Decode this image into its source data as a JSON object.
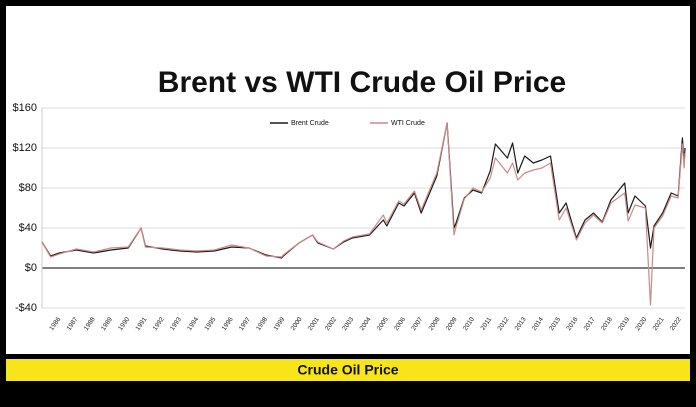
{
  "chart_data": {
    "type": "line",
    "title": "Brent vs WTI Crude Oil Price",
    "subtitle": "Crude Oil Price",
    "legend": "top-center",
    "grid": true,
    "xlim": [
      1985,
      2022.3
    ],
    "xticks": [
      1986,
      1987,
      1988,
      1989,
      1990,
      1991,
      1992,
      1993,
      1994,
      1995,
      1996,
      1997,
      1998,
      1999,
      2000,
      2001,
      2002,
      2003,
      2004,
      2005,
      2006,
      2007,
      2008,
      2009,
      2010,
      2011,
      2012,
      2013,
      2014,
      2015,
      2016,
      2017,
      2018,
      2019,
      2020,
      2021,
      2022
    ],
    "ylim": [
      -40,
      160
    ],
    "yticks": [
      {
        "value": -40,
        "label": "-$40"
      },
      {
        "value": 0,
        "label": "$0"
      },
      {
        "value": 40,
        "label": "$40"
      },
      {
        "value": 80,
        "label": "$80"
      },
      {
        "value": 120,
        "label": "$120"
      },
      {
        "value": 160,
        "label": "$160"
      }
    ],
    "x": [
      1985,
      1985.5,
      1986,
      1987,
      1988,
      1989,
      1990,
      1990.75,
      1991,
      1992,
      1993,
      1994,
      1995,
      1996,
      1997,
      1998,
      1998.9,
      1999,
      1999.9,
      2000.7,
      2001,
      2001.9,
      2002.5,
      2003,
      2004,
      2004.8,
      2005,
      2005.7,
      2006,
      2006.6,
      2007,
      2007.9,
      2008.5,
      2008.9,
      2009,
      2009.5,
      2010,
      2010.5,
      2011,
      2011.3,
      2012,
      2012.3,
      2012.6,
      2013,
      2013.5,
      2014,
      2014.5,
      2015,
      2015.4,
      2016,
      2016.5,
      2017,
      2017.5,
      2018,
      2018.8,
      2019,
      2019.4,
      2020,
      2020.3,
      2020.5,
      2021,
      2021.5,
      2021.9,
      2022.15,
      2022.25,
      2022.3
    ],
    "series": [
      {
        "name": "Brent Crude",
        "color": "#1a1a1a",
        "values": [
          26,
          12,
          15,
          18,
          15,
          18,
          20,
          40,
          22,
          19,
          17,
          16,
          17,
          21,
          20,
          13,
          10,
          12,
          25,
          33,
          25,
          19,
          26,
          30,
          33,
          48,
          42,
          65,
          62,
          75,
          55,
          92,
          145,
          40,
          44,
          70,
          78,
          75,
          97,
          124,
          110,
          125,
          95,
          112,
          105,
          108,
          112,
          55,
          65,
          30,
          48,
          55,
          46,
          68,
          85,
          55,
          72,
          62,
          20,
          42,
          55,
          75,
          72,
          130,
          105,
          120
        ]
      },
      {
        "name": "WTI Crude",
        "color": "#c98a8a",
        "values": [
          26,
          11,
          14,
          19,
          16,
          20,
          21,
          40,
          21,
          20,
          18,
          17,
          18,
          23,
          20,
          12,
          11,
          13,
          25,
          33,
          26,
          19,
          27,
          31,
          34,
          53,
          45,
          67,
          64,
          77,
          58,
          95,
          145,
          33,
          40,
          69,
          80,
          76,
          90,
          110,
          95,
          105,
          88,
          95,
          98,
          100,
          105,
          48,
          60,
          28,
          45,
          53,
          45,
          65,
          75,
          47,
          63,
          60,
          -37,
          40,
          52,
          72,
          70,
          124,
          100,
          115
        ]
      }
    ]
  }
}
